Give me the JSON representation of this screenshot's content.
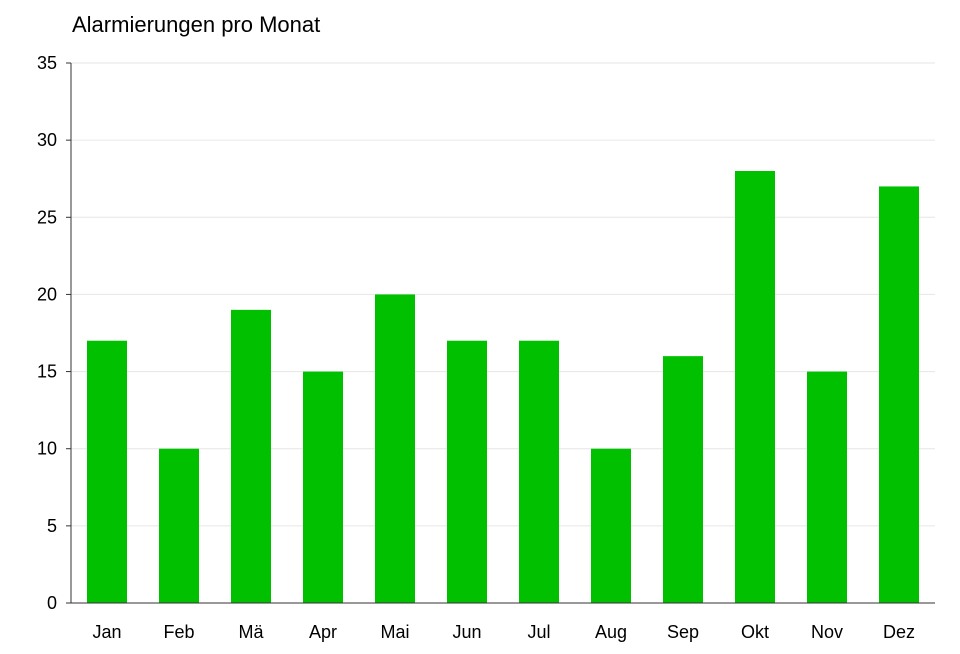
{
  "chart_data": {
    "type": "bar",
    "title": "Alarmierungen pro Monat",
    "xlabel": "",
    "ylabel": "",
    "categories": [
      "Jan",
      "Feb",
      "Mä",
      "Apr",
      "Mai",
      "Jun",
      "Jul",
      "Aug",
      "Sep",
      "Okt",
      "Nov",
      "Dez"
    ],
    "values": [
      17,
      10,
      19,
      15,
      20,
      17,
      17,
      10,
      16,
      28,
      15,
      27
    ],
    "ylim": [
      0,
      35
    ],
    "yticks": [
      "0",
      "5",
      "10",
      "15",
      "20",
      "25",
      "30",
      "35"
    ],
    "grid": true,
    "legend": "none",
    "colors": {
      "bar": "#00c000",
      "grid": "#e6e6e6",
      "axis": "#333333"
    }
  }
}
